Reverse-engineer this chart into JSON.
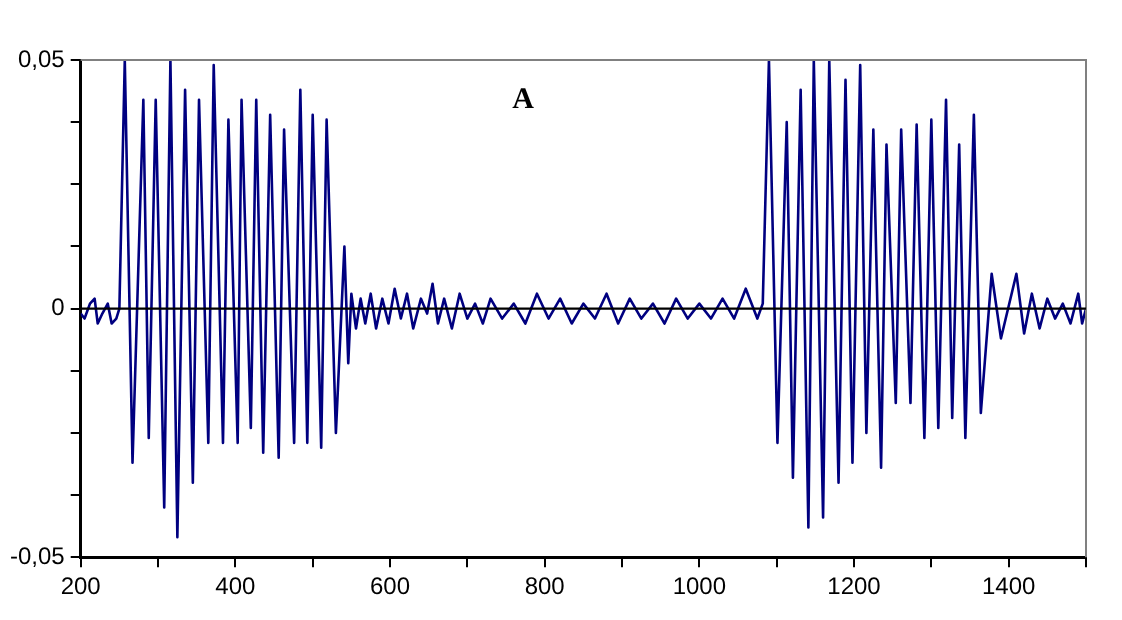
{
  "chart_data": {
    "type": "line",
    "title": "A",
    "xlim": [
      200,
      1500
    ],
    "xticks": [
      200,
      {
        "value": 300,
        "label": null
      },
      400,
      {
        "value": 500,
        "label": null
      },
      600,
      {
        "value": 700,
        "label": null
      },
      800,
      {
        "value": 900,
        "label": null
      },
      1000,
      {
        "value": 1100,
        "label": null
      },
      1200,
      {
        "value": 1300,
        "label": null
      },
      1400,
      {
        "value": 1500,
        "label": null
      }
    ],
    "ylim": [
      -0.05,
      0.05
    ],
    "yticks": [
      {
        "value": -0.05,
        "label": "-0,05"
      },
      {
        "value": -0.0375,
        "label": null
      },
      {
        "value": -0.025,
        "label": null
      },
      {
        "value": -0.0125,
        "label": null
      },
      {
        "value": 0,
        "label": "0"
      },
      {
        "value": 0.0125,
        "label": null
      },
      {
        "value": 0.025,
        "label": null
      },
      {
        "value": 0.0375,
        "label": null
      },
      {
        "value": 0.05,
        "label": "0,05"
      }
    ],
    "ref_lines": [
      {
        "axis": "y",
        "value": 0,
        "color": "#000000"
      }
    ],
    "series": [
      {
        "color": "#000080",
        "x": [
          200,
          205,
          212,
          218,
          222,
          228,
          235,
          240,
          246,
          250,
          257,
          267,
          281,
          288,
          297,
          308,
          316,
          325,
          335,
          345,
          353,
          365,
          372,
          384,
          391,
          403,
          408,
          420,
          427,
          436,
          445,
          456,
          463,
          476,
          484,
          493,
          500,
          511,
          518,
          530,
          541,
          546,
          550,
          556,
          562,
          568,
          575,
          582,
          590,
          598,
          606,
          614,
          622,
          630,
          640,
          648,
          655,
          662,
          670,
          680,
          690,
          700,
          710,
          720,
          730,
          745,
          760,
          775,
          790,
          805,
          820,
          835,
          850,
          865,
          880,
          895,
          910,
          925,
          940,
          955,
          970,
          985,
          1000,
          1015,
          1030,
          1045,
          1060,
          1075,
          1082,
          1090,
          1101,
          1113,
          1121,
          1131,
          1141,
          1148,
          1160,
          1168,
          1180,
          1189,
          1198,
          1208,
          1216,
          1225,
          1235,
          1242,
          1254,
          1261,
          1273,
          1281,
          1291,
          1300,
          1309,
          1319,
          1327,
          1336,
          1344,
          1355,
          1364,
          1378,
          1390,
          1410,
          1420,
          1430,
          1440,
          1450,
          1460,
          1470,
          1480,
          1490,
          1495,
          1500
        ],
        "values": [
          -0.001,
          -0.002,
          0.001,
          0.002,
          -0.003,
          -0.001,
          0.001,
          -0.003,
          -0.002,
          0,
          0.05,
          -0.031,
          0.042,
          -0.026,
          0.042,
          -0.04,
          0.05,
          -0.046,
          0.044,
          -0.035,
          0.042,
          -0.027,
          0.049,
          -0.027,
          0.038,
          -0.027,
          0.042,
          -0.024,
          0.042,
          -0.029,
          0.039,
          -0.03,
          0.036,
          -0.027,
          0.044,
          -0.027,
          0.039,
          -0.028,
          0.038,
          -0.025,
          0.0125,
          -0.011,
          0.003,
          -0.004,
          0.002,
          -0.003,
          0.003,
          -0.004,
          0.002,
          -0.003,
          0.004,
          -0.002,
          0.003,
          -0.004,
          0.002,
          -0.001,
          0.005,
          -0.003,
          0.002,
          -0.004,
          0.003,
          -0.002,
          0.001,
          -0.003,
          0.002,
          -0.002,
          0.001,
          -0.003,
          0.003,
          -0.002,
          0.002,
          -0.003,
          0.001,
          -0.002,
          0.003,
          -0.003,
          0.002,
          -0.002,
          0.001,
          -0.003,
          0.002,
          -0.002,
          0.001,
          -0.002,
          0.002,
          -0.002,
          0.004,
          -0.002,
          0.001,
          0.05,
          -0.027,
          0.0375,
          -0.034,
          0.044,
          -0.044,
          0.05,
          -0.042,
          0.05,
          -0.035,
          0.046,
          -0.031,
          0.049,
          -0.025,
          0.036,
          -0.032,
          0.033,
          -0.019,
          0.036,
          -0.019,
          0.037,
          -0.026,
          0.038,
          -0.024,
          0.042,
          -0.022,
          0.033,
          -0.026,
          0.039,
          -0.021,
          0.007,
          -0.006,
          0.007,
          -0.005,
          0.003,
          -0.004,
          0.002,
          -0.002,
          0.001,
          -0.003,
          0.003,
          -0.003,
          0
        ]
      }
    ]
  }
}
